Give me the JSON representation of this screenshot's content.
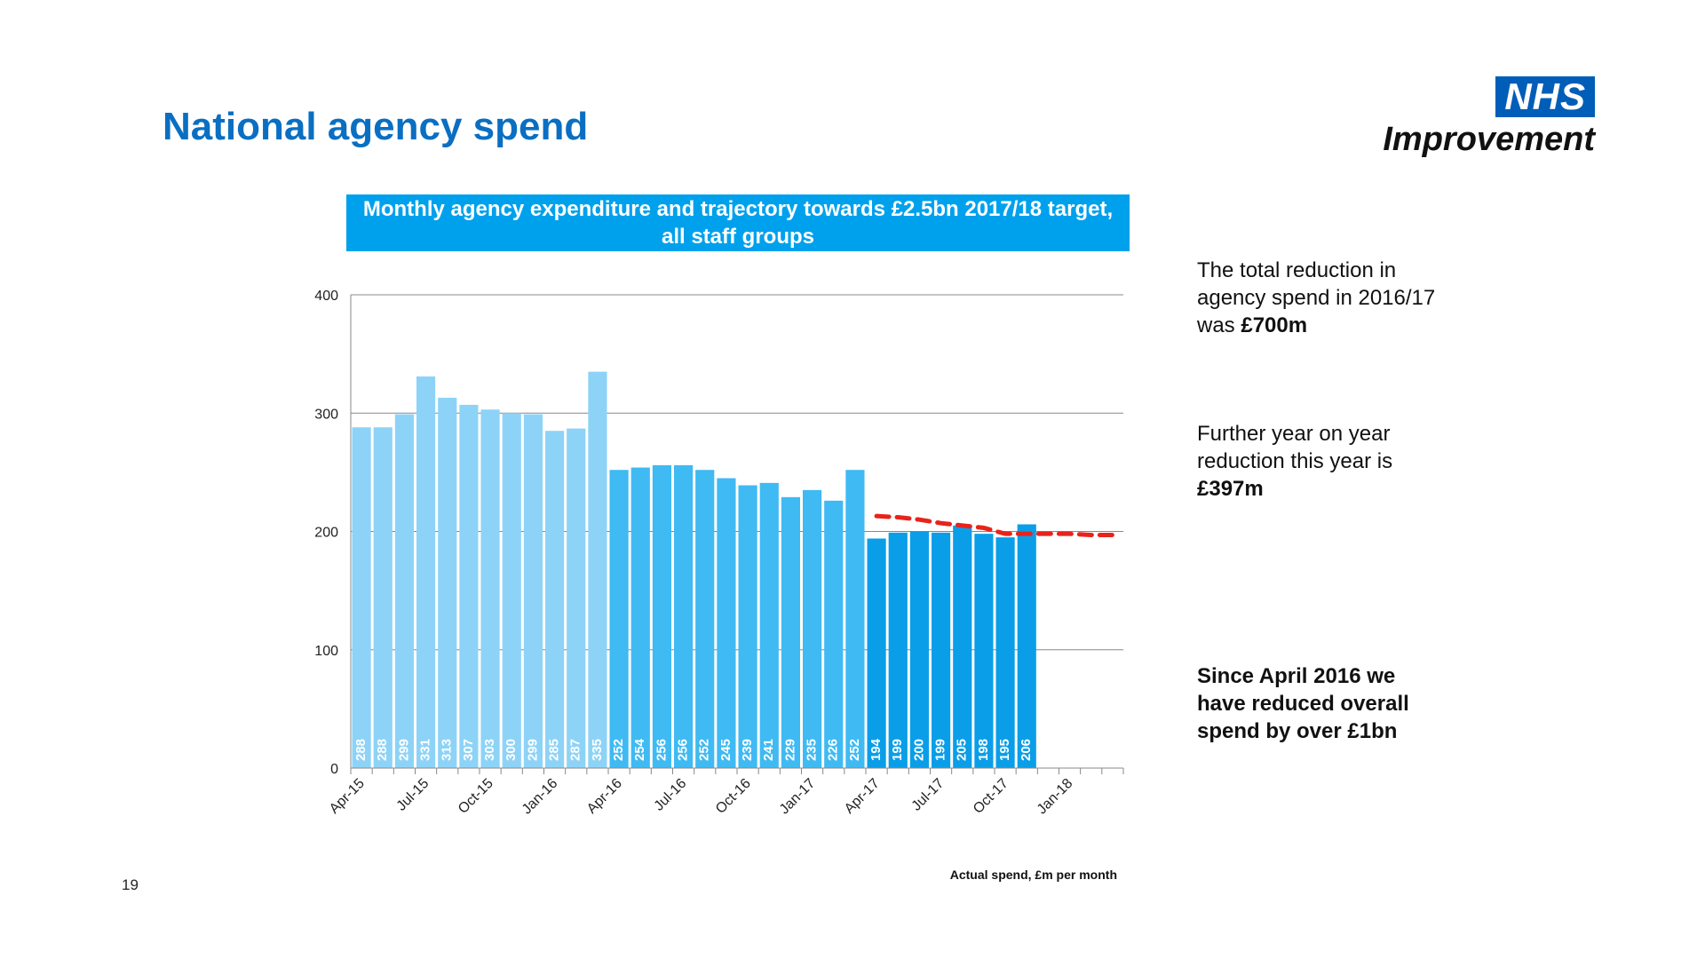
{
  "page": {
    "title": "National agency spend",
    "page_number": "19"
  },
  "logo": {
    "line1": "NHS",
    "line2": "Improvement",
    "color": "#005eb8"
  },
  "side_text": {
    "block1": {
      "text": "The total reduction in agency spend in 2016/17 was ",
      "bold": "£700m"
    },
    "block2": {
      "text": "Further year on year reduction this year is ",
      "bold": "£397m"
    },
    "block3": {
      "bold": "Since April 2016 we have reduced overall spend by over £1bn"
    }
  },
  "chart_data": {
    "type": "bar",
    "title": "Monthly agency expenditure and trajectory towards  £2.5bn 2017/18 target, all staff groups",
    "note": "Actual spend, £m per month",
    "ylim": [
      0,
      400
    ],
    "yticks": [
      0,
      100,
      200,
      300,
      400
    ],
    "grid": true,
    "months": [
      "Apr-15",
      "May-15",
      "Jun-15",
      "Jul-15",
      "Aug-15",
      "Sep-15",
      "Oct-15",
      "Nov-15",
      "Dec-15",
      "Jan-16",
      "Feb-16",
      "Mar-16",
      "Apr-16",
      "May-16",
      "Jun-16",
      "Jul-16",
      "Aug-16",
      "Sep-16",
      "Oct-16",
      "Nov-16",
      "Dec-16",
      "Jan-17",
      "Feb-17",
      "Mar-17",
      "Apr-17",
      "May-17",
      "Jun-17",
      "Jul-17",
      "Aug-17",
      "Sep-17",
      "Oct-17",
      "Nov-17",
      "Dec-17",
      "Jan-18",
      "Feb-18",
      "Mar-18"
    ],
    "xtick_labels": [
      "Apr-15",
      "Jul-15",
      "Oct-15",
      "Jan-16",
      "Apr-16",
      "Jul-16",
      "Oct-16",
      "Jan-17",
      "Apr-17",
      "Jul-17",
      "Oct-17",
      "Jan-18"
    ],
    "series": [
      {
        "values": [
          288,
          288,
          299,
          331,
          313,
          307,
          303,
          300,
          299,
          285,
          287,
          335
        ],
        "start": 0,
        "color": "#8dd3f7"
      },
      {
        "values": [
          252,
          254,
          256,
          256,
          252,
          245,
          239,
          241,
          229,
          235,
          226,
          252
        ],
        "start": 12,
        "color": "#3fbaf3"
      },
      {
        "values": [
          194,
          199,
          200,
          199,
          205,
          198,
          195,
          206
        ],
        "start": 24,
        "color": "#0a9ee8"
      }
    ],
    "trajectory": {
      "start": 24,
      "values": [
        213,
        212,
        210,
        207,
        205,
        203,
        198,
        198,
        198,
        198,
        197,
        197
      ],
      "color": "#e8231b",
      "style": "dashed"
    }
  }
}
